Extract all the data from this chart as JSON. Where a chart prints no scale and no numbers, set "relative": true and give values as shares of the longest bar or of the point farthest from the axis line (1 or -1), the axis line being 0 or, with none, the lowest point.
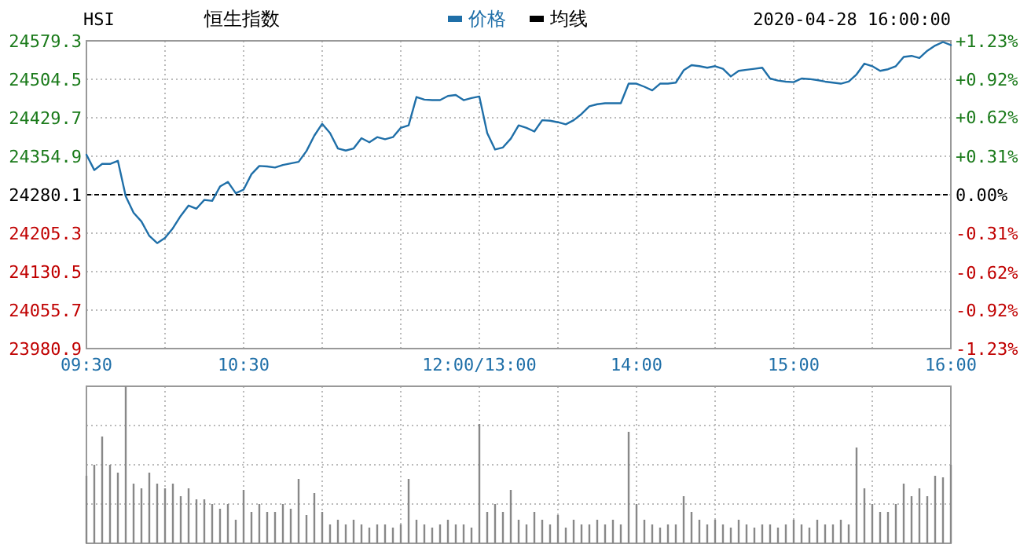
{
  "chart_data": [
    {
      "type": "line",
      "title": "HSI",
      "subtitle": "恒生指数",
      "annotations": [
        "2020-04-28 16:00:00"
      ],
      "categories": [
        "09:30",
        null,
        null,
        null,
        null,
        null,
        null,
        null,
        null,
        null,
        null,
        null,
        null,
        null,
        null,
        null,
        null,
        null,
        null,
        null,
        "10:30",
        null,
        null,
        null,
        null,
        null,
        null,
        null,
        null,
        null,
        null,
        null,
        null,
        null,
        null,
        null,
        null,
        null,
        null,
        null,
        null,
        null,
        null,
        null,
        null,
        null,
        null,
        null,
        null,
        null,
        "12:00/13:00",
        null,
        null,
        null,
        null,
        null,
        null,
        null,
        null,
        null,
        null,
        null,
        null,
        null,
        null,
        null,
        null,
        null,
        null,
        null,
        "14:00",
        null,
        null,
        null,
        null,
        null,
        null,
        null,
        null,
        null,
        null,
        null,
        null,
        null,
        null,
        null,
        null,
        null,
        null,
        null,
        "15:00",
        null,
        null,
        null,
        null,
        null,
        null,
        null,
        null,
        null,
        null,
        null,
        null,
        null,
        null,
        null,
        null,
        null,
        null,
        null,
        "16:00"
      ],
      "ylim": [
        23980.9,
        24579.3
      ],
      "yticks": [
        23980.9,
        24055.7,
        24130.5,
        24205.3,
        24280.1,
        24354.9,
        24429.7,
        24504.5,
        24579.3
      ],
      "y2lim": [
        -1.23,
        1.23
      ],
      "y2ticks": [
        {
          "value": -1.23,
          "label": "-1.23%"
        },
        {
          "value": -0.92,
          "label": "-0.92%"
        },
        {
          "value": -0.62,
          "label": "-0.62%"
        },
        {
          "value": -0.31,
          "label": "-0.31%"
        },
        {
          "value": 0,
          "label": "0.00%"
        },
        {
          "value": 0.31,
          "label": "+0.31%"
        },
        {
          "value": 0.62,
          "label": "+0.62%"
        },
        {
          "value": 0.92,
          "label": "+0.92%"
        },
        {
          "value": 1.23,
          "label": "+1.23%"
        }
      ],
      "ref_lines": [
        {
          "axis": "y",
          "value": 24280.1,
          "color": "#000000",
          "line_style": "dashed"
        }
      ],
      "grid": true,
      "legend": "top",
      "series": [
        {
          "name": "价格",
          "color": "#1f6fa8",
          "values": [
            24358,
            24328,
            24340,
            24340,
            24346,
            24277,
            24245,
            24228,
            24200,
            24186,
            24196,
            24215,
            24239,
            24259,
            24253,
            24270,
            24268,
            24296,
            24305,
            24283,
            24290,
            24320,
            24336,
            24335,
            24333,
            24338,
            24341,
            24344,
            24365,
            24395,
            24418,
            24400,
            24370,
            24366,
            24370,
            24390,
            24382,
            24392,
            24388,
            24392,
            24410,
            24415,
            24470,
            24465,
            24464,
            24464,
            24472,
            24474,
            24464,
            24468,
            24471,
            24400,
            24368,
            24372,
            24389,
            24415,
            24410,
            24403,
            24425,
            24424,
            24421,
            24417,
            24425,
            24437,
            24452,
            24456,
            24458,
            24458,
            24458,
            24496,
            24496,
            24490,
            24483,
            24496,
            24496,
            24498,
            24522,
            24532,
            24530,
            24527,
            24530,
            24525,
            24510,
            24521,
            24523,
            24525,
            24527,
            24506,
            24502,
            24500,
            24499,
            24506,
            24505,
            24503,
            24500,
            24498,
            24496,
            24500,
            24514,
            24535,
            24530,
            24521,
            24524,
            24530,
            24548,
            24550,
            24546,
            24560,
            24570,
            24577,
            24571
          ]
        },
        {
          "name": "均线",
          "color": "#000000",
          "values": [
            null,
            null,
            null,
            null,
            null,
            null,
            null,
            null,
            null,
            null,
            null,
            null,
            null,
            null,
            null,
            null,
            null,
            null,
            null,
            null,
            null,
            null,
            null,
            null,
            null,
            null,
            null,
            null,
            null,
            null,
            null,
            null,
            null,
            null,
            null,
            null,
            null,
            null,
            null,
            null,
            null,
            null,
            null,
            null,
            null,
            null,
            null,
            null,
            null,
            null,
            null,
            null,
            null,
            null,
            null,
            null,
            null,
            null,
            null,
            null,
            null,
            null,
            null,
            null,
            null,
            null,
            null,
            null,
            null,
            null,
            null,
            null,
            null,
            null,
            null,
            null,
            null,
            null,
            null,
            null,
            null,
            null,
            null,
            null,
            null,
            null,
            null,
            null,
            null,
            null,
            null,
            null,
            null,
            null,
            null,
            null,
            null,
            null,
            null,
            null,
            null,
            null,
            null,
            null,
            null,
            null,
            null,
            null,
            null,
            null,
            null
          ]
        }
      ]
    },
    {
      "type": "bar",
      "relative": true,
      "grid": true,
      "color": "#888888",
      "categories": [
        null,
        null,
        null,
        null,
        null,
        null,
        null,
        null,
        null,
        null,
        null,
        null,
        null,
        null,
        null,
        null,
        null,
        null,
        null,
        null,
        null,
        null,
        null,
        null,
        null,
        null,
        null,
        null,
        null,
        null,
        null,
        null,
        null,
        null,
        null,
        null,
        null,
        null,
        null,
        null,
        null,
        null,
        null,
        null,
        null,
        null,
        null,
        null,
        null,
        null,
        null,
        null,
        null,
        null,
        null,
        null,
        null,
        null,
        null,
        null,
        null,
        null,
        null,
        null,
        null,
        null,
        null,
        null,
        null,
        null,
        null,
        null,
        null,
        null,
        null,
        null,
        null,
        null,
        null,
        null,
        null,
        null,
        null,
        null,
        null,
        null,
        null,
        null,
        null,
        null,
        null,
        null,
        null,
        null,
        null,
        null,
        null,
        null,
        null,
        null,
        null,
        null,
        null,
        null,
        null,
        null,
        null,
        null,
        null,
        null,
        null
      ],
      "values": [
        0.43,
        0.5,
        0.68,
        0.5,
        0.45,
        1.0,
        0.38,
        0.35,
        0.45,
        0.38,
        0.35,
        0.38,
        0.3,
        0.35,
        0.28,
        0.28,
        0.25,
        0.22,
        0.25,
        0.15,
        0.34,
        0.2,
        0.25,
        0.2,
        0.2,
        0.25,
        0.22,
        0.41,
        0.18,
        0.32,
        0.2,
        0.12,
        0.15,
        0.12,
        0.15,
        0.12,
        0.1,
        0.12,
        0.12,
        0.1,
        0.12,
        0.41,
        0.15,
        0.12,
        0.1,
        0.12,
        0.15,
        0.12,
        0.12,
        0.1,
        0.76,
        0.2,
        0.25,
        0.2,
        0.34,
        0.15,
        0.12,
        0.2,
        0.15,
        0.12,
        0.18,
        0.1,
        0.15,
        0.12,
        0.12,
        0.15,
        0.12,
        0.15,
        0.12,
        0.71,
        0.25,
        0.15,
        0.12,
        0.1,
        0.12,
        0.12,
        0.3,
        0.2,
        0.15,
        0.12,
        0.15,
        0.12,
        0.1,
        0.15,
        0.12,
        0.1,
        0.12,
        0.12,
        0.1,
        0.12,
        0.15,
        0.12,
        0.1,
        0.15,
        0.12,
        0.12,
        0.15,
        0.12,
        0.61,
        0.35,
        0.25,
        0.2,
        0.2,
        0.25,
        0.38,
        0.3,
        0.35,
        0.3,
        0.43,
        0.42,
        0.5
      ]
    }
  ]
}
